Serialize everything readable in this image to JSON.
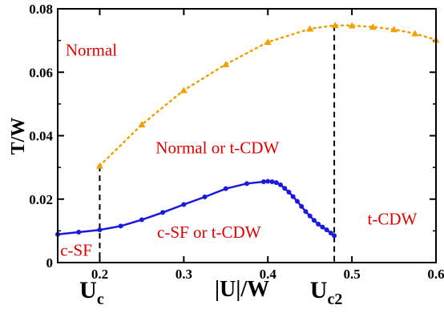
{
  "chart_data": {
    "type": "line",
    "xlabel": "|U|/W",
    "ylabel": "T/W",
    "xlim": [
      0.15,
      0.6
    ],
    "ylim": [
      0,
      0.08
    ],
    "x_ticks": [
      {
        "value": 0.2,
        "label": "0.2"
      },
      {
        "value": 0.3,
        "label": "0.3"
      },
      {
        "value": 0.4,
        "label": "0.4"
      },
      {
        "value": 0.5,
        "label": "0.5"
      },
      {
        "value": 0.6,
        "label": "0.6"
      }
    ],
    "y_ticks": [
      {
        "value": 0,
        "label": "0"
      },
      {
        "value": 0.02,
        "label": "0.02"
      },
      {
        "value": 0.04,
        "label": "0.04"
      },
      {
        "value": 0.06,
        "label": "0.06"
      },
      {
        "value": 0.08,
        "label": "0.08"
      }
    ],
    "critical_points": [
      {
        "x": 0.2,
        "label_main": "U",
        "label_sub": "c"
      },
      {
        "x": 0.479,
        "label_main": "U",
        "label_sub": "c2"
      }
    ],
    "series": [
      {
        "color": "#1a1adc",
        "line_style": "solid",
        "marker": "circle",
        "x": [
          0.15,
          0.175,
          0.2,
          0.225,
          0.25,
          0.275,
          0.3,
          0.325,
          0.35,
          0.375,
          0.395,
          0.4,
          0.405,
          0.41,
          0.415,
          0.42,
          0.425,
          0.43,
          0.435,
          0.44,
          0.445,
          0.45,
          0.455,
          0.46,
          0.465,
          0.47,
          0.475,
          0.479
        ],
        "y": [
          0.0089,
          0.0096,
          0.0103,
          0.0115,
          0.0135,
          0.0158,
          0.0183,
          0.0207,
          0.0233,
          0.0249,
          0.0255,
          0.0256,
          0.0255,
          0.0252,
          0.0245,
          0.0234,
          0.0222,
          0.0208,
          0.0193,
          0.0177,
          0.0161,
          0.0147,
          0.0133,
          0.0121,
          0.0112,
          0.0103,
          0.0093,
          0.0085
        ]
      },
      {
        "color": "#f0a000",
        "line_style": "dotted",
        "marker": "triangle",
        "x": [
          0.2,
          0.25,
          0.3,
          0.35,
          0.4,
          0.45,
          0.48,
          0.5,
          0.525,
          0.55,
          0.575,
          0.6
        ],
        "y": [
          0.0305,
          0.0435,
          0.0543,
          0.0625,
          0.0695,
          0.0737,
          0.0748,
          0.0747,
          0.0743,
          0.0735,
          0.0722,
          0.0702
        ]
      }
    ],
    "region_labels": [
      {
        "text": "Normal",
        "x": 0.19,
        "y": 0.0652
      },
      {
        "text": "Normal or t-CDW",
        "x": 0.34,
        "y": 0.0345
      },
      {
        "text": "c-SF or t-CDW",
        "x": 0.33,
        "y": 0.0078
      },
      {
        "text": "c-SF",
        "x": 0.172,
        "y": 0.0022
      },
      {
        "text": "t-CDW",
        "x": 0.548,
        "y": 0.012
      }
    ]
  }
}
